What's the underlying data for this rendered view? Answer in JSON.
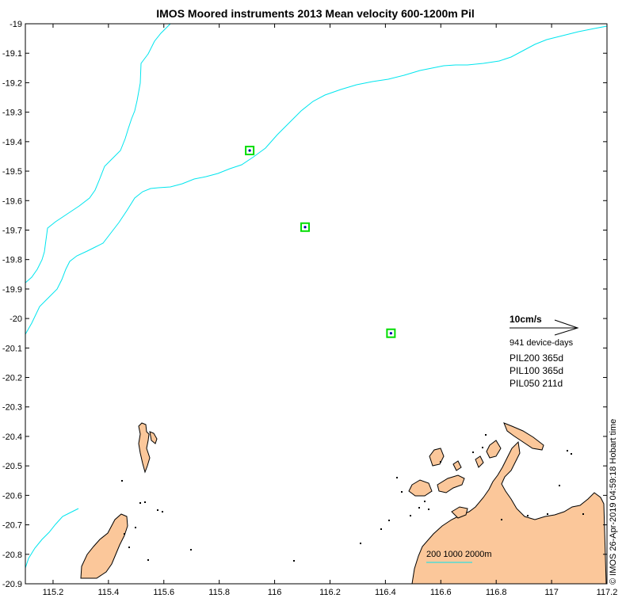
{
  "title": "IMOS Moored instruments 2013 Mean velocity 600-1200m Pil",
  "colors": {
    "land": "#fbc79a",
    "contour": "#00e5ee",
    "mooring_box": "#00dd00",
    "mooring_dot": "#0000aa",
    "frame": "#000000"
  },
  "axes": {
    "lon_range": [
      115.1,
      117.2
    ],
    "lat_range": [
      -20.9,
      -19.0
    ],
    "x_ticks": [
      "115.2",
      "115.4",
      "115.6",
      "115.8",
      "116",
      "116.2",
      "116.4",
      "116.6",
      "116.8",
      "117",
      "117.2"
    ],
    "y_ticks": [
      "-19",
      "-19.1",
      "-19.2",
      "-19.3",
      "-19.4",
      "-19.5",
      "-19.6",
      "-19.7",
      "-19.8",
      "-19.9",
      "-20",
      "-20.1",
      "-20.2",
      "-20.3",
      "-20.4",
      "-20.5",
      "-20.6",
      "-20.7",
      "-20.8",
      "-20.9"
    ]
  },
  "moorings": [
    {
      "lon": 115.91,
      "lat": -19.43
    },
    {
      "lon": 116.11,
      "lat": -19.69
    },
    {
      "lon": 116.42,
      "lat": -20.05
    }
  ],
  "legend": {
    "scale_label": "10cm/s",
    "device_days": "941 device-days",
    "stations": [
      "PIL200 365d",
      "PIL100 365d",
      "PIL050 211d"
    ],
    "contour_label": "200 1000 2000m"
  },
  "timestamp": "© IMOS 26-Apr-2019 04:59:18 Hobart time"
}
